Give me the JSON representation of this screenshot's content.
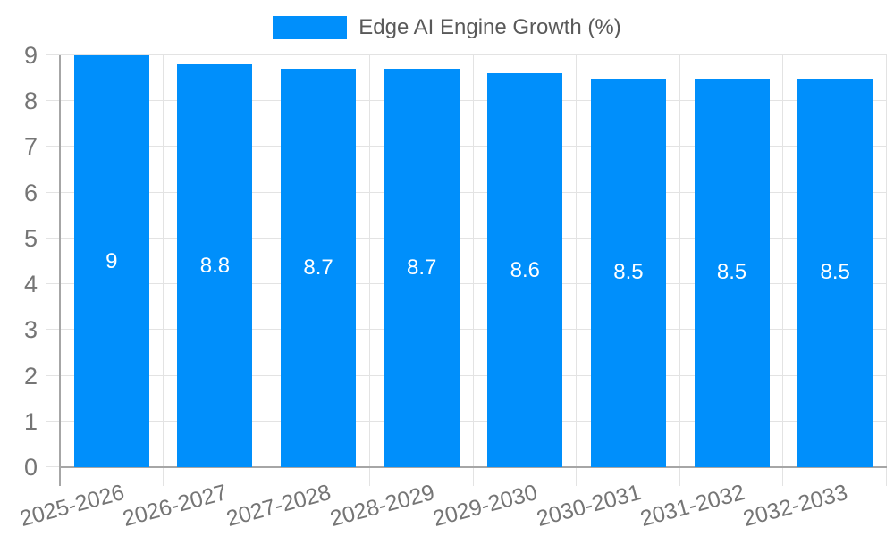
{
  "legend": {
    "label": "Edge AI Engine Growth (%)"
  },
  "chart_data": {
    "type": "bar",
    "title": "Edge AI Engine Growth (%)",
    "categories": [
      "2025-2026",
      "2026-2027",
      "2027-2028",
      "2028-2029",
      "2029-2030",
      "2030-2031",
      "2031-2032",
      "2032-2033"
    ],
    "values": [
      9,
      8.8,
      8.7,
      8.7,
      8.6,
      8.5,
      8.5,
      8.5
    ],
    "value_labels": [
      "9",
      "8.8",
      "8.7",
      "8.7",
      "8.6",
      "8.5",
      "8.5",
      "8.5"
    ],
    "xlabel": "",
    "ylabel": "",
    "ylim": [
      0,
      9
    ],
    "yticks": [
      0,
      1,
      2,
      3,
      4,
      5,
      6,
      7,
      8,
      9
    ],
    "grid": true,
    "legend_position": "top-center",
    "x_label_rotation_deg": -15
  },
  "colors": {
    "bar": "#008FFB",
    "value_label": "#ffffff",
    "gridline": "#e3e3e3",
    "axis_line": "#a6a6a6",
    "tick_label": "#757575",
    "legend_label": "#595959",
    "background": "#ffffff"
  }
}
